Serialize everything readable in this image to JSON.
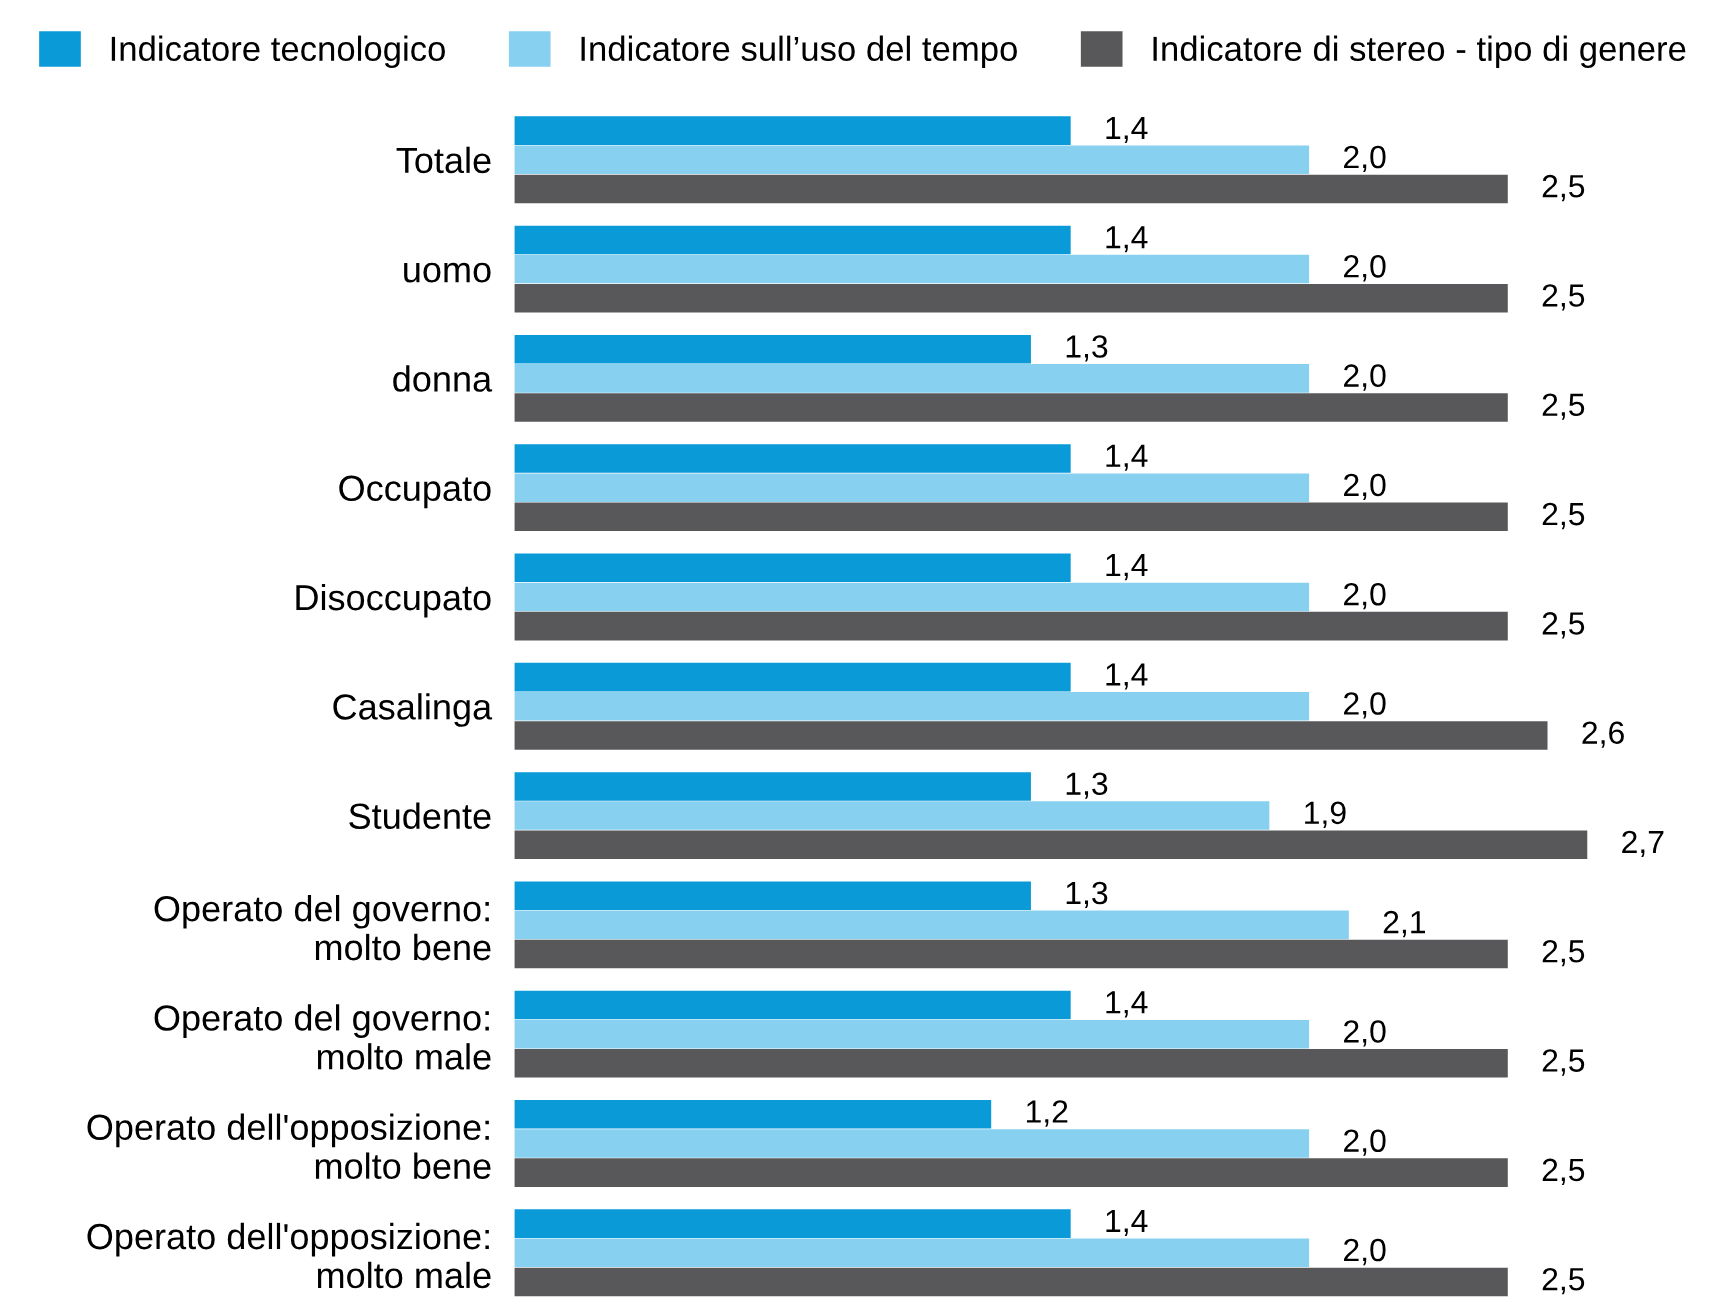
{
  "chart_data": {
    "type": "bar",
    "orientation": "horizontal",
    "legend": "top",
    "categories": [
      "Totale",
      "uomo",
      "donna",
      "Occupato",
      "Disoccupato",
      "Casalinga",
      "Studente",
      "Operato del governo:\nmolto bene",
      "Operato del governo:\nmolto male",
      "Operato dell'opposizione:\nmolto bene",
      "Operato dell'opposizione:\nmolto male"
    ],
    "series": [
      {
        "name": "Indicatore tecnologico",
        "color": "#0a9ad8",
        "values": [
          1.4,
          1.4,
          1.3,
          1.4,
          1.4,
          1.4,
          1.3,
          1.3,
          1.4,
          1.2,
          1.4
        ],
        "value_labels": [
          "1,4",
          "1,4",
          "1,3",
          "1,4",
          "1,4",
          "1,4",
          "1,3",
          "1,3",
          "1,4",
          "1,2",
          "1,4"
        ]
      },
      {
        "name": "Indicatore sull’uso del tempo",
        "color": "#87d0f0",
        "values": [
          2.0,
          2.0,
          2.0,
          2.0,
          2.0,
          2.0,
          1.9,
          2.1,
          2.0,
          2.0,
          2.0
        ],
        "value_labels": [
          "2,0",
          "2,0",
          "2,0",
          "2,0",
          "2,0",
          "2,0",
          "1,9",
          "2,1",
          "2,0",
          "2,0",
          "2,0"
        ]
      },
      {
        "name": "Indicatore di stereo - tipo di genere",
        "color": "#58585a",
        "values": [
          2.5,
          2.5,
          2.5,
          2.5,
          2.5,
          2.6,
          2.7,
          2.5,
          2.5,
          2.5,
          2.5
        ],
        "value_labels": [
          "2,5",
          "2,5",
          "2,5",
          "2,5",
          "2,5",
          "2,6",
          "2,7",
          "2,5",
          "2,5",
          "2,5",
          "2,5"
        ]
      }
    ]
  }
}
